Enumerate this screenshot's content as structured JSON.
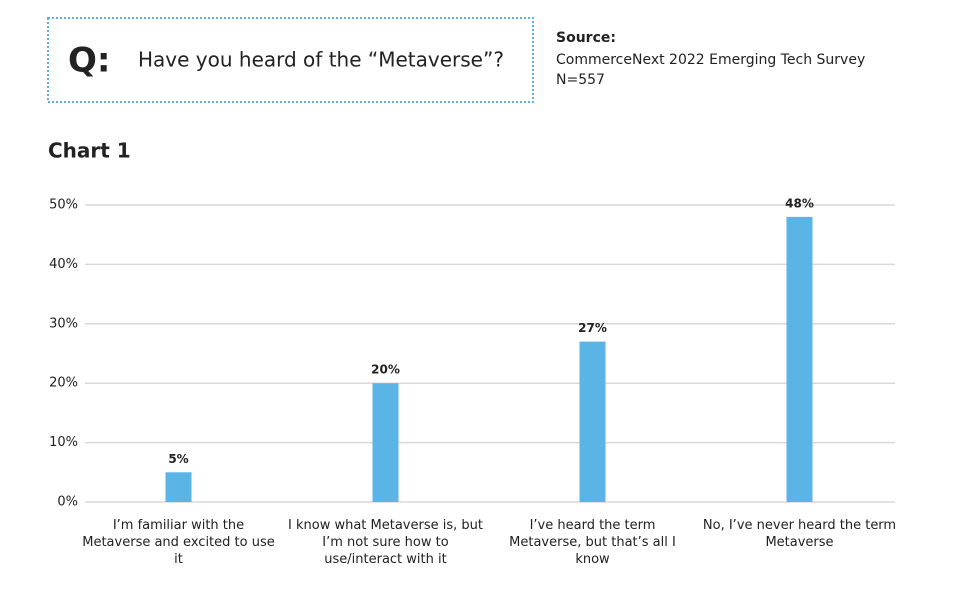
{
  "header": {
    "question_label": "Q:",
    "question": "Have you heard of the “Metaverse”?",
    "source_label": "Source:",
    "source": "CommerceNext 2022 Emerging Tech Survey",
    "sample": "N=557"
  },
  "chart_data": {
    "type": "bar",
    "title": "Chart 1",
    "categories": [
      "I’m familiar with the Metaverse and excited to use it",
      "I know what Metaverse is, but I’m not sure how to use/interact with it",
      "I’ve heard the term Metaverse, but that’s all I know",
      "No, I’ve never heard the term Metaverse"
    ],
    "values": [
      5,
      20,
      27,
      48
    ],
    "value_labels": [
      "5%",
      "20%",
      "27%",
      "48%"
    ],
    "color": "#5ab4e5",
    "ylim": [
      0,
      50
    ],
    "yticks": [
      {
        "value": 0,
        "label": "0%"
      },
      {
        "value": 10,
        "label": "10%"
      },
      {
        "value": 20,
        "label": "20%"
      },
      {
        "value": 30,
        "label": "30%"
      },
      {
        "value": 40,
        "label": "40%"
      },
      {
        "value": 50,
        "label": "50%"
      }
    ],
    "grid": true
  }
}
